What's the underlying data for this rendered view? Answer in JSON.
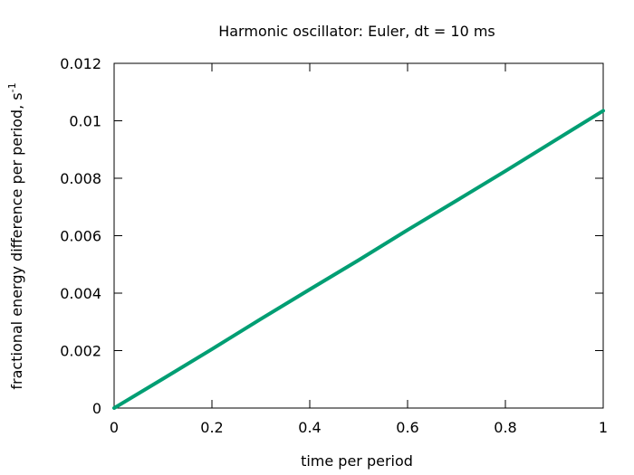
{
  "chart_data": {
    "type": "line",
    "title": "Harmonic oscillator: Euler, dt = 10 ms",
    "xlabel": "time per period",
    "ylabel": "fractional energy difference per period, s",
    "ylabel_superscript": "-1",
    "xlim": [
      0,
      1
    ],
    "ylim": [
      0,
      0.012
    ],
    "xticks": [
      0,
      0.2,
      0.4,
      0.6,
      0.8,
      1
    ],
    "xtick_labels": [
      "0",
      "0.2",
      "0.4",
      "0.6",
      "0.8",
      "1"
    ],
    "yticks": [
      0,
      0.002,
      0.004,
      0.006,
      0.008,
      0.01,
      0.012
    ],
    "ytick_labels": [
      "0",
      "0.002",
      "0.004",
      "0.006",
      "0.008",
      "0.01",
      "0.012"
    ],
    "grid": false,
    "series": [
      {
        "name": "energy difference",
        "color": "#009e73",
        "x": [
          0,
          0.1,
          0.2,
          0.3,
          0.4,
          0.5,
          0.6,
          0.7,
          0.8,
          0.9,
          1.0
        ],
        "y": [
          0,
          0.00102,
          0.00205,
          0.0031,
          0.00413,
          0.00515,
          0.0062,
          0.00722,
          0.00825,
          0.0093,
          0.01035
        ]
      }
    ]
  }
}
